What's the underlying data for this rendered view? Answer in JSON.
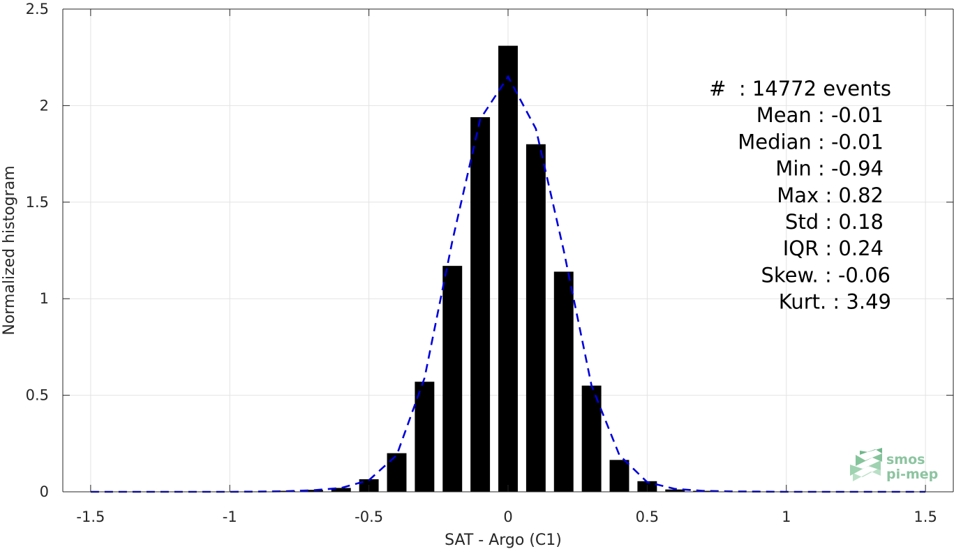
{
  "chart_data": {
    "type": "bar",
    "xlabel": "SAT - Argo (C1)",
    "ylabel": "Normalized histogram",
    "xlim": [
      -1.6,
      1.6
    ],
    "ylim": [
      0,
      2.5
    ],
    "grid": true,
    "xticks": [
      -1.5,
      -1,
      -0.5,
      0,
      0.5,
      1,
      1.5
    ],
    "xtick_labels": [
      "-1.5",
      "-1",
      "-0.5",
      "0",
      "0.5",
      "1",
      "1.5"
    ],
    "yticks": [
      0,
      0.5,
      1,
      1.5,
      2,
      2.5
    ],
    "ytick_labels": [
      "0",
      "0.5",
      "1",
      "1.5",
      "2",
      "2.5"
    ],
    "bin_width": 0.1,
    "bars": {
      "x": [
        -0.9,
        -0.8,
        -0.7,
        -0.6,
        -0.5,
        -0.4,
        -0.3,
        -0.2,
        -0.1,
        0.0,
        0.1,
        0.2,
        0.3,
        0.4,
        0.5,
        0.6,
        0.7
      ],
      "values": [
        0.002,
        0.005,
        0.01,
        0.02,
        0.065,
        0.2,
        0.57,
        1.17,
        1.94,
        2.31,
        1.8,
        1.14,
        0.55,
        0.165,
        0.055,
        0.012,
        0.005
      ],
      "color": "#000000"
    },
    "fit": {
      "style": "dashed",
      "color": "#0000dd",
      "x": [
        -1.5,
        -1.4,
        -1.3,
        -1.2,
        -1.1,
        -1.0,
        -0.9,
        -0.8,
        -0.7,
        -0.6,
        -0.5,
        -0.4,
        -0.3,
        -0.2,
        -0.1,
        0.0,
        0.1,
        0.2,
        0.3,
        0.4,
        0.5,
        0.6,
        0.7,
        0.8,
        0.9,
        1.0,
        1.1,
        1.2,
        1.3,
        1.4,
        1.5
      ],
      "values": [
        0,
        0,
        0,
        0,
        0,
        0,
        0.001,
        0.003,
        0.008,
        0.02,
        0.06,
        0.19,
        0.59,
        1.3,
        1.93,
        2.15,
        1.88,
        1.25,
        0.55,
        0.19,
        0.05,
        0.015,
        0.005,
        0.002,
        0.001,
        0,
        0,
        0,
        0,
        0,
        0
      ]
    },
    "annotations": [
      "#  : 14772 events",
      "Mean : -0.01",
      "Median : -0.01",
      "Min : -0.94",
      "Max : 0.82",
      "Std : 0.18",
      "IQR : 0.24",
      "Skew. : -0.06",
      "Kurt. : 3.49"
    ]
  },
  "logo": {
    "line1": "smos",
    "line2": "pi-mep",
    "color": "#8cc4a0"
  }
}
